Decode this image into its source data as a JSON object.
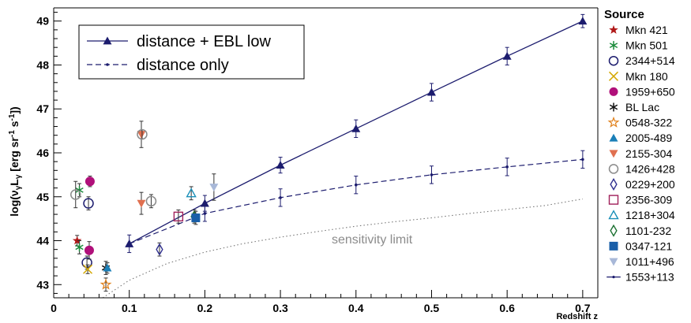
{
  "chart_data": {
    "type": "scatter",
    "xlabel": "Redshift z",
    "ylabel": "log(ν",
    "ylabel_sub1": "γ",
    "ylabel_mid": "L",
    "ylabel_sub2": "γ",
    "ylabel_unit": " [erg sr",
    "ylabel_exp1": "-1",
    "ylabel_unit2": " s",
    "ylabel_exp2": "-1",
    "ylabel_end": "])",
    "xlim": [
      0,
      0.72
    ],
    "ylim": [
      42.7,
      49.3
    ],
    "xticks": [
      0,
      0.1,
      0.2,
      0.3,
      0.4,
      0.5,
      0.6,
      0.7
    ],
    "xtick_labels": [
      "0",
      "0.1",
      "0.2",
      "0.3",
      "0.4",
      "0.5",
      "0.6",
      "0.7"
    ],
    "yticks": [
      43,
      44,
      45,
      46,
      47,
      48,
      49
    ],
    "ytick_labels": [
      "43",
      "44",
      "45",
      "46",
      "47",
      "48",
      "49"
    ],
    "grid": false,
    "legend_title": "Source",
    "inset_legend": [
      {
        "label": "distance + EBL low",
        "style": "solid"
      },
      {
        "label": "distance only",
        "style": "dashed"
      }
    ],
    "annotation": "sensitivity limit",
    "curves": {
      "ebl_low": {
        "x": [
          0.1,
          0.2,
          0.3,
          0.4,
          0.5,
          0.6,
          0.7
        ],
        "y": [
          43.93,
          44.85,
          45.72,
          46.55,
          47.38,
          48.2,
          49.0
        ],
        "err": [
          0.2,
          0.18,
          0.18,
          0.2,
          0.2,
          0.2,
          0.15
        ]
      },
      "dist_only": {
        "x": [
          0.1,
          0.2,
          0.3,
          0.4,
          0.5,
          0.6,
          0.7
        ],
        "y": [
          43.93,
          44.62,
          44.98,
          45.27,
          45.5,
          45.68,
          45.85
        ],
        "err": [
          0.2,
          0.18,
          0.2,
          0.2,
          0.2,
          0.2,
          0.2
        ]
      },
      "sensitivity": {
        "x": [
          0.065,
          0.1,
          0.15,
          0.2,
          0.25,
          0.3,
          0.35,
          0.4,
          0.45,
          0.5,
          0.55,
          0.6,
          0.65,
          0.7
        ],
        "y": [
          42.7,
          43.1,
          43.48,
          43.74,
          43.93,
          44.08,
          44.21,
          44.33,
          44.43,
          44.52,
          44.62,
          44.71,
          44.8,
          44.95
        ]
      }
    },
    "series": [
      {
        "name": "Mkn 421",
        "marker": "star-filled",
        "color": "#b01818",
        "points": [
          {
            "x": 0.031,
            "y": 44.0,
            "err": 0.12
          }
        ]
      },
      {
        "name": "Mkn 501",
        "marker": "asterisk",
        "color": "#1a8a3a",
        "points": [
          {
            "x": 0.034,
            "y": 43.85,
            "err": 0.15
          },
          {
            "x": 0.034,
            "y": 45.15,
            "err": 0.15
          }
        ]
      },
      {
        "name": "2344+514",
        "marker": "circle-open",
        "color": "#1c1c6e",
        "points": [
          {
            "x": 0.044,
            "y": 43.5,
            "err": 0.15
          },
          {
            "x": 0.046,
            "y": 44.85,
            "err": 0.15
          }
        ]
      },
      {
        "name": "Mkn 180",
        "marker": "cross",
        "color": "#d4a800",
        "points": [
          {
            "x": 0.045,
            "y": 43.35,
            "err": 0.1
          }
        ]
      },
      {
        "name": "1959+650",
        "marker": "circle-filled",
        "color": "#b0107a",
        "points": [
          {
            "x": 0.047,
            "y": 43.78,
            "err": 0.2
          },
          {
            "x": 0.048,
            "y": 45.35,
            "err": 0.12
          }
        ]
      },
      {
        "name": "BL Lac",
        "marker": "asterisk",
        "color": "#111111",
        "points": [
          {
            "x": 0.069,
            "y": 43.38,
            "err": 0.15
          }
        ]
      },
      {
        "name": "0548-322",
        "marker": "star-open",
        "color": "#e0801a",
        "points": [
          {
            "x": 0.069,
            "y": 43.0,
            "err": 0.15
          }
        ]
      },
      {
        "name": "2005-489",
        "marker": "triangle-up-filled",
        "color": "#1a7fb8",
        "points": [
          {
            "x": 0.071,
            "y": 43.38,
            "err": 0.12
          }
        ]
      },
      {
        "name": "2155-304",
        "marker": "triangle-down-filled",
        "color": "#e07050",
        "points": [
          {
            "x": 0.116,
            "y": 46.42,
            "err": 0.3
          },
          {
            "x": 0.116,
            "y": 44.85,
            "err": 0.25
          }
        ]
      },
      {
        "name": "1426+428",
        "marker": "circle-open",
        "color": "#8a8a8a",
        "points": [
          {
            "x": 0.029,
            "y": 45.05,
            "err": 0.3
          },
          {
            "x": 0.129,
            "y": 44.9,
            "err": 0.15
          },
          {
            "x": 0.117,
            "y": 46.42,
            "err": 0.1
          }
        ]
      },
      {
        "name": "0229+200",
        "marker": "diamond-open",
        "color": "#303090",
        "points": [
          {
            "x": 0.14,
            "y": 43.8,
            "err": 0.15
          }
        ]
      },
      {
        "name": "2356-309",
        "marker": "square-open",
        "color": "#a0205a",
        "points": [
          {
            "x": 0.165,
            "y": 44.55,
            "err": 0.15
          }
        ]
      },
      {
        "name": "1218+304",
        "marker": "triangle-up-open",
        "color": "#1a8fb8",
        "points": [
          {
            "x": 0.182,
            "y": 45.08,
            "err": 0.15
          }
        ]
      },
      {
        "name": "1101-232",
        "marker": "diamond-open",
        "color": "#1a7030",
        "points": [
          {
            "x": 0.186,
            "y": 44.55,
            "err": 0.15
          }
        ]
      },
      {
        "name": "0347-121",
        "marker": "square-filled",
        "color": "#1a5fa8",
        "points": [
          {
            "x": 0.188,
            "y": 44.52,
            "err": 0.15
          }
        ]
      },
      {
        "name": "1011+496",
        "marker": "triangle-down-filled",
        "color": "#a8b8d8",
        "points": [
          {
            "x": 0.212,
            "y": 45.22,
            "err": 0.3
          }
        ]
      },
      {
        "name": "1553+113",
        "marker": "line-point",
        "color": "#1c1c6e",
        "points": []
      }
    ]
  }
}
